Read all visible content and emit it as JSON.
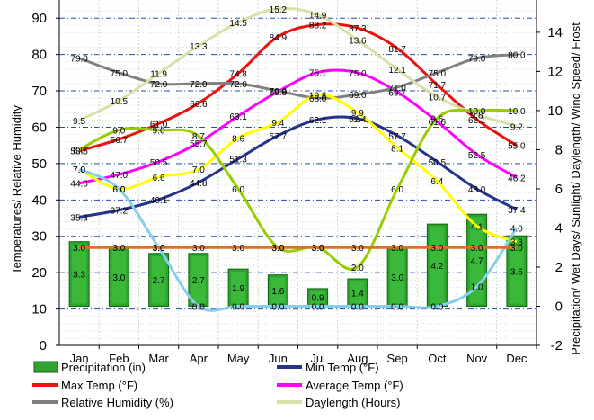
{
  "chart_data": {
    "type": "bar",
    "categories": [
      "Jan",
      "Feb",
      "Mar",
      "Apr",
      "May",
      "Jun",
      "Jul",
      "Aug",
      "Sep",
      "Oct",
      "Nov",
      "Dec"
    ],
    "ylabel_left": "Temperatures/ Relative Humidity",
    "ylabel_right": "Precipitation/ Wet Days/ Sunlight/ Daylength/ Wind Speed/ Frost",
    "ylim_left": [
      0,
      95
    ],
    "yticks_left": [
      0,
      10,
      20,
      30,
      40,
      50,
      60,
      70,
      80,
      90
    ],
    "ylim_right": [
      -2,
      15.65
    ],
    "yticks_right": [
      -2,
      0,
      2,
      4,
      6,
      8,
      10,
      12,
      14
    ],
    "grid": true,
    "series": [
      {
        "name": "Precipitation (in)",
        "type": "bar",
        "axis": "right",
        "color": "#2ea32e",
        "values": [
          3.3,
          3.0,
          2.7,
          2.7,
          1.9,
          1.6,
          0.9,
          1.4,
          3.0,
          4.2,
          4.7,
          3.6
        ]
      },
      {
        "name": "Min Temp (°F)",
        "type": "line",
        "axis": "left",
        "color": "#26348c",
        "values": [
          35.3,
          37.2,
          40.1,
          44.8,
          51.3,
          57.7,
          62.1,
          62.4,
          57.7,
          50.5,
          43.0,
          37.4
        ]
      },
      {
        "name": "Max Temp (°F)",
        "type": "line",
        "axis": "left",
        "color": "#ee1111",
        "values": [
          53.5,
          56.7,
          61.0,
          66.6,
          74.8,
          84.9,
          88.2,
          87.3,
          81.7,
          71.7,
          62.1,
          55.0
        ]
      },
      {
        "name": "Average Temp (°F)",
        "type": "line",
        "axis": "left",
        "color": "#ff00ff",
        "values": [
          44.6,
          47.0,
          50.5,
          55.7,
          63.1,
          69.8,
          75.1,
          75.0,
          69.7,
          61.6,
          52.5,
          46.2
        ]
      },
      {
        "name": "Relative Humidity (%)",
        "type": "line",
        "axis": "left",
        "color": "#808080",
        "values": [
          79.0,
          75.0,
          72.0,
          72.0,
          72.0,
          70.0,
          68.0,
          69.0,
          71.0,
          75.0,
          79.0,
          80.0
        ]
      },
      {
        "name": "Daylength (Hours)",
        "type": "line",
        "axis": "right",
        "color": "#d9dfa6",
        "values": [
          9.5,
          10.5,
          11.9,
          13.3,
          14.5,
          15.2,
          14.9,
          13.6,
          12.1,
          10.7,
          9.8,
          9.2
        ]
      },
      {
        "type": "line",
        "axis": "right",
        "color": "#ffff00",
        "values": [
          7.0,
          6.0,
          6.6,
          7.0,
          8.6,
          9.4,
          10.8,
          9.9,
          8.1,
          6.4,
          4.1,
          3.3
        ]
      },
      {
        "type": "line",
        "axis": "right",
        "color": "#99cc00",
        "values": [
          8.0,
          9.0,
          9.0,
          8.7,
          6.0,
          3.0,
          3.0,
          2.0,
          6.0,
          9.6,
          10.0,
          10.0
        ]
      },
      {
        "type": "line",
        "axis": "right",
        "color": "#87ceeb",
        "values": [
          7.0,
          6.0,
          3.0,
          0.0,
          0.0,
          0.0,
          0.0,
          0.0,
          0.0,
          0.0,
          1.0,
          4.0
        ]
      },
      {
        "type": "line",
        "axis": "right",
        "color": "#e0701c",
        "values": [
          3.0,
          3.0,
          3.0,
          3.0,
          3.0,
          3.0,
          3.0,
          3.0,
          3.0,
          3.0,
          3.0,
          3.0
        ]
      }
    ],
    "legend_placement": "bottom"
  }
}
